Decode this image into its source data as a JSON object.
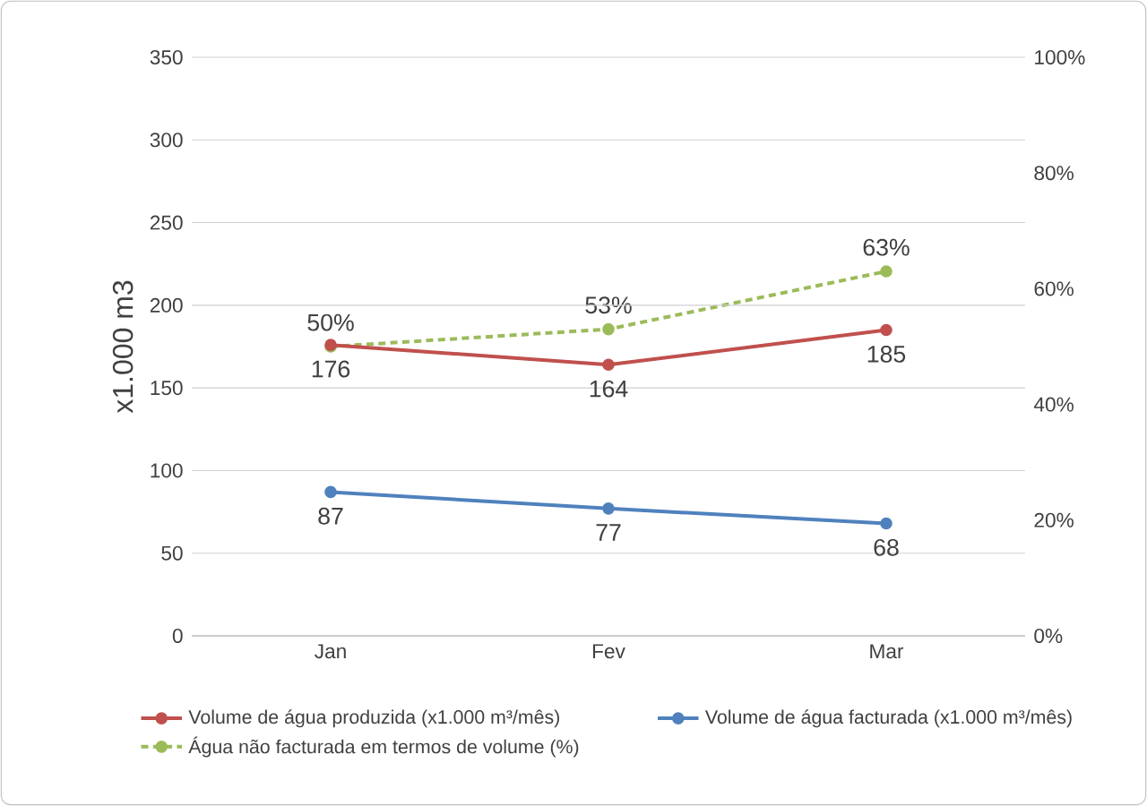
{
  "chart_data": {
    "type": "line",
    "ylabel": "x1.000 m3",
    "categories": [
      "Jan",
      "Fev",
      "Mar"
    ],
    "series": [
      {
        "name": "Volume de água produzida (x1.000 m³/mês)",
        "color": "#c0504d",
        "values": [
          176,
          164,
          185
        ],
        "value_labels": [
          "176",
          "164",
          "185"
        ]
      },
      {
        "name": "Volume de água facturada (x1.000 m³/mês)",
        "color": "#4f81bd",
        "values": [
          87,
          77,
          68
        ],
        "value_labels": [
          "87",
          "77",
          "68"
        ]
      },
      {
        "name": "Água não facturada em termos de volume (%)",
        "color": "#9bbb59",
        "values": [
          50,
          53,
          63
        ],
        "value_labels": [
          "50%",
          "53%",
          "63%"
        ],
        "axis": "y2",
        "line_style": "dashed"
      }
    ],
    "ylim": [
      0,
      350
    ],
    "yticks": [
      0,
      50,
      100,
      150,
      200,
      250,
      300,
      350
    ],
    "y2lim": [
      0,
      100
    ],
    "y2ticks": [
      {
        "value": 0,
        "label": "0%"
      },
      {
        "value": 20,
        "label": "20%"
      },
      {
        "value": 40,
        "label": "40%"
      },
      {
        "value": 60,
        "label": "60%"
      },
      {
        "value": 80,
        "label": "80%"
      },
      {
        "value": 100,
        "label": "100%"
      }
    ],
    "grid": "y",
    "legend": "bottom",
    "marker": "circle",
    "line_style": "solid"
  }
}
